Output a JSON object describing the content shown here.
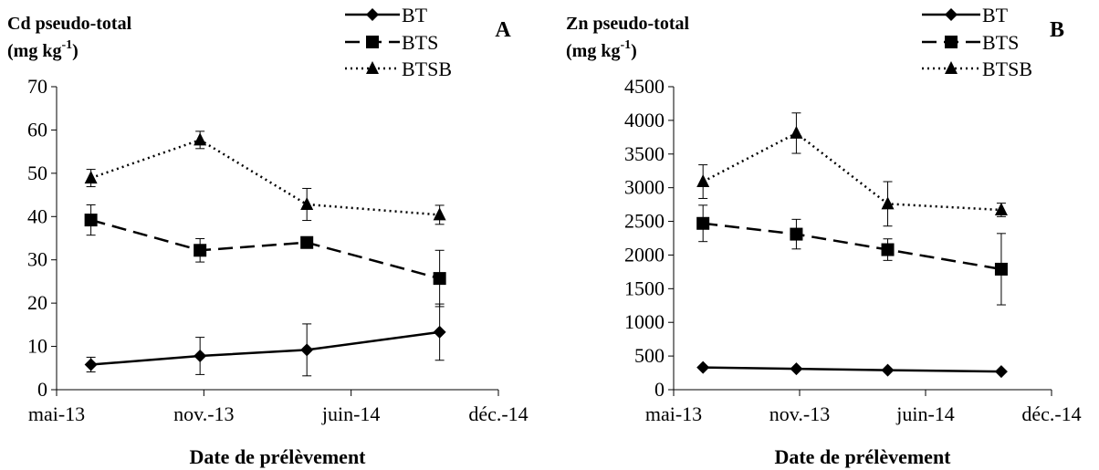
{
  "chart_data": [
    {
      "type": "line",
      "panel_label": "A",
      "ylabel_line1": "Cd pseudo-total",
      "ylabel_line2_base": "(mg kg",
      "ylabel_line2_sup": "-1",
      "ylabel_line2_end": ")",
      "xlabel": "Date de prélèvement",
      "x_ticks": [
        "mai-13",
        "nov.-13",
        "juin-14",
        "déc.-14"
      ],
      "x_range": [
        "2013-05-01",
        "2014-12-01"
      ],
      "ylim": [
        0,
        70
      ],
      "y_ticks": [
        "0",
        "10",
        "20",
        "30",
        "40",
        "50",
        "60",
        "70"
      ],
      "legend_position": "top-right",
      "series": [
        {
          "name": "BT",
          "marker": "diamond",
          "line": "solid",
          "x": [
            "2013-06-15",
            "2013-11-05",
            "2014-03-25",
            "2014-09-15"
          ],
          "y": [
            5.8,
            7.8,
            9.2,
            13.3
          ],
          "err": [
            1.7,
            4.3,
            6.0,
            6.5
          ]
        },
        {
          "name": "BTS",
          "marker": "square",
          "line": "dashed",
          "x": [
            "2013-06-15",
            "2013-11-05",
            "2014-03-25",
            "2014-09-15"
          ],
          "y": [
            39.2,
            32.2,
            34.0,
            25.7
          ],
          "err": [
            3.5,
            2.7,
            1.0,
            6.5
          ]
        },
        {
          "name": "BTSB",
          "marker": "triangle",
          "line": "dotted",
          "x": [
            "2013-06-15",
            "2013-11-05",
            "2014-03-25",
            "2014-09-15"
          ],
          "y": [
            48.9,
            57.7,
            42.8,
            40.4
          ],
          "err": [
            2.0,
            2.0,
            3.7,
            2.2
          ]
        }
      ]
    },
    {
      "type": "line",
      "panel_label": "B",
      "ylabel_line1": "Zn pseudo-total",
      "ylabel_line2_base": "(mg kg",
      "ylabel_line2_sup": "-1",
      "ylabel_line2_end": ")",
      "xlabel": "Date de prélèvement",
      "x_ticks": [
        "mai-13",
        "nov.-13",
        "juin-14",
        "déc.-14"
      ],
      "x_range": [
        "2013-05-01",
        "2014-12-01"
      ],
      "ylim": [
        0,
        4500
      ],
      "y_ticks": [
        "0",
        "500",
        "1000",
        "1500",
        "2000",
        "2500",
        "3000",
        "3500",
        "4000",
        "4500"
      ],
      "legend_position": "top-right",
      "series": [
        {
          "name": "BT",
          "marker": "diamond",
          "line": "solid",
          "x": [
            "2013-06-15",
            "2013-11-05",
            "2014-03-25",
            "2014-09-15"
          ],
          "y": [
            330,
            310,
            290,
            270
          ],
          "err": [
            0,
            0,
            0,
            0
          ]
        },
        {
          "name": "BTS",
          "marker": "square",
          "line": "dashed",
          "x": [
            "2013-06-15",
            "2013-11-05",
            "2014-03-25",
            "2014-09-15"
          ],
          "y": [
            2470,
            2310,
            2080,
            1790
          ],
          "err": [
            270,
            220,
            160,
            530
          ]
        },
        {
          "name": "BTSB",
          "marker": "triangle",
          "line": "dotted",
          "x": [
            "2013-06-15",
            "2013-11-05",
            "2014-03-25",
            "2014-09-15"
          ],
          "y": [
            3090,
            3810,
            2760,
            2670
          ],
          "err": [
            250,
            300,
            330,
            100
          ]
        }
      ]
    }
  ]
}
